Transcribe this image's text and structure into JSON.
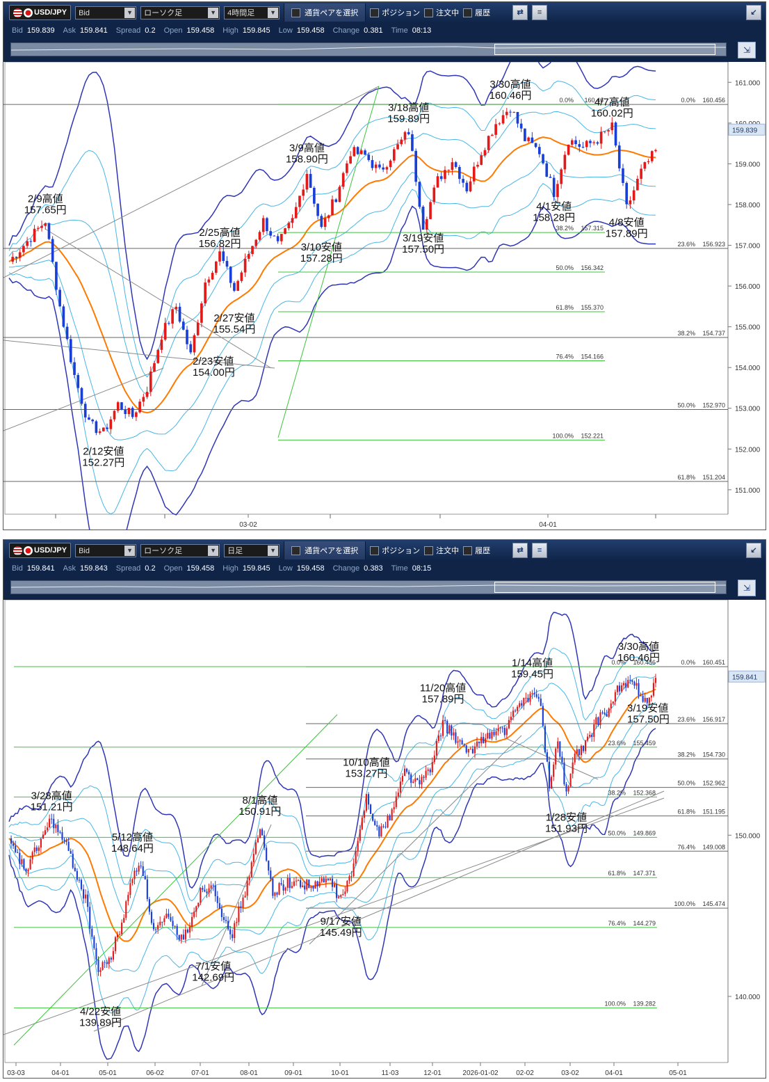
{
  "panels": [
    {
      "toolbar": {
        "symbol": "USD/JPY",
        "price_type": "Bid",
        "chart_kind": "ローソク足",
        "timeframe": "4時間足",
        "pair_select": "通貨ペアを選択",
        "positions": "ポジション",
        "orders": "注文中",
        "history": "履歴"
      },
      "quote": {
        "bid_label": "Bid",
        "bid": "159.839",
        "ask_label": "Ask",
        "ask": "159.841",
        "spread_label": "Spread",
        "spread": "0.2",
        "open_label": "Open",
        "open": "159.458",
        "high_label": "High",
        "high": "159.845",
        "low_label": "Low",
        "low": "159.458",
        "change_label": "Change",
        "change": "0.381",
        "time_label": "Time",
        "time": "08:13"
      },
      "current_price": "159.839"
    },
    {
      "toolbar": {
        "symbol": "USD/JPY",
        "price_type": "Bid",
        "chart_kind": "ローソク足",
        "timeframe": "日足",
        "pair_select": "通貨ペアを選択",
        "positions": "ポジション",
        "orders": "注文中",
        "history": "履歴"
      },
      "quote": {
        "bid_label": "Bid",
        "bid": "159.841",
        "ask_label": "Ask",
        "ask": "159.843",
        "spread_label": "Spread",
        "spread": "0.2",
        "open_label": "Open",
        "open": "159.458",
        "high_label": "High",
        "high": "159.845",
        "low_label": "Low",
        "low": "159.458",
        "change_label": "Change",
        "change": "0.383",
        "time_label": "Time",
        "time": "08:15"
      },
      "current_price": "159.841"
    }
  ],
  "colors": {
    "up": "#e21a1a",
    "down": "#1a3fd6",
    "ma_fast": "#ff7a00",
    "bb_inner": "#47b6e6",
    "bb_outer": "#2f36b5",
    "fib_green": "#3cc43c",
    "fib_gray": "#666666",
    "trend": "#8a8a8a"
  },
  "chart_data": [
    {
      "type": "candlestick",
      "timeframe": "4時間足",
      "x_ticks": [
        "03-02",
        "04-01"
      ],
      "y_ticks": [
        151.0,
        152.0,
        153.0,
        154.0,
        155.0,
        156.0,
        157.0,
        158.0,
        159.0,
        160.0,
        161.0
      ],
      "ylim": [
        150.4,
        161.5
      ],
      "last_price": 159.839,
      "anchors": [
        {
          "t": 0,
          "p": 156.6
        },
        {
          "t": 6,
          "p": 157.2
        },
        {
          "t": 10,
          "p": 157.6
        },
        {
          "t": 14,
          "p": 155.5
        },
        {
          "t": 18,
          "p": 153.8
        },
        {
          "t": 22,
          "p": 152.6
        },
        {
          "t": 26,
          "p": 152.4
        },
        {
          "t": 30,
          "p": 153.1
        },
        {
          "t": 34,
          "p": 152.8
        },
        {
          "t": 38,
          "p": 153.5
        },
        {
          "t": 42,
          "p": 154.8
        },
        {
          "t": 46,
          "p": 155.5
        },
        {
          "t": 50,
          "p": 154.3
        },
        {
          "t": 54,
          "p": 156.1
        },
        {
          "t": 58,
          "p": 156.8
        },
        {
          "t": 62,
          "p": 155.9
        },
        {
          "t": 66,
          "p": 156.8
        },
        {
          "t": 70,
          "p": 157.6
        },
        {
          "t": 74,
          "p": 157.0
        },
        {
          "t": 78,
          "p": 157.6
        },
        {
          "t": 82,
          "p": 158.8
        },
        {
          "t": 86,
          "p": 157.4
        },
        {
          "t": 90,
          "p": 158.2
        },
        {
          "t": 94,
          "p": 159.3
        },
        {
          "t": 98,
          "p": 159.2
        },
        {
          "t": 102,
          "p": 158.8
        },
        {
          "t": 106,
          "p": 159.3
        },
        {
          "t": 110,
          "p": 159.8
        },
        {
          "t": 114,
          "p": 157.5
        },
        {
          "t": 118,
          "p": 158.6
        },
        {
          "t": 122,
          "p": 159.1
        },
        {
          "t": 126,
          "p": 158.4
        },
        {
          "t": 130,
          "p": 159.3
        },
        {
          "t": 134,
          "p": 160.0
        },
        {
          "t": 138,
          "p": 160.4
        },
        {
          "t": 142,
          "p": 159.6
        },
        {
          "t": 146,
          "p": 159.3
        },
        {
          "t": 150,
          "p": 158.3
        },
        {
          "t": 154,
          "p": 159.6
        },
        {
          "t": 158,
          "p": 159.4
        },
        {
          "t": 162,
          "p": 159.6
        },
        {
          "t": 166,
          "p": 159.9
        },
        {
          "t": 170,
          "p": 157.9
        },
        {
          "t": 174,
          "p": 158.8
        },
        {
          "t": 178,
          "p": 159.3
        }
      ],
      "horizontal_lines": [
        {
          "label": "0.0%",
          "value": "160.456",
          "price": 160.456,
          "kind": "gray"
        },
        {
          "label": "23.6%",
          "value": "156.923",
          "price": 156.923,
          "kind": "gray"
        },
        {
          "label": "38.2%",
          "value": "154.737",
          "price": 154.737,
          "kind": "gray"
        },
        {
          "label": "50.0%",
          "value": "152.970",
          "price": 152.97,
          "kind": "gray"
        },
        {
          "label": "61.8%",
          "value": "151.204",
          "price": 151.204,
          "kind": "gray"
        }
      ],
      "fib_green": [
        {
          "label": "0.0%",
          "value": "160.46",
          "price": 160.46
        },
        {
          "label": "38.2%",
          "value": "157.315",
          "price": 157.315
        },
        {
          "label": "50.0%",
          "value": "156.342",
          "price": 156.342
        },
        {
          "label": "61.8%",
          "value": "155.370",
          "price": 155.37
        },
        {
          "label": "76.4%",
          "value": "154.166",
          "price": 154.166
        },
        {
          "label": "100.0%",
          "value": "152.221",
          "price": 152.221
        }
      ],
      "annotations": [
        {
          "line1": "2/9高値",
          "line2": "157.65円",
          "t": 10,
          "p": 157.65,
          "pos": "above"
        },
        {
          "line1": "2/12安値",
          "line2": "152.27円",
          "t": 26,
          "p": 152.27,
          "pos": "below"
        },
        {
          "line1": "2/23安値",
          "line2": "154.00円",
          "t": 49,
          "p": 154.0,
          "pos": "right"
        },
        {
          "line1": "2/25高値",
          "line2": "156.82円",
          "t": 58,
          "p": 156.82,
          "pos": "above"
        },
        {
          "line1": "2/27安値",
          "line2": "155.54円",
          "t": 62,
          "p": 155.54,
          "pos": "below"
        },
        {
          "line1": "3/9高値",
          "line2": "158.90円",
          "t": 82,
          "p": 158.9,
          "pos": "above"
        },
        {
          "line1": "3/10安値",
          "line2": "157.28円",
          "t": 86,
          "p": 157.28,
          "pos": "below"
        },
        {
          "line1": "3/18高値",
          "line2": "159.89円",
          "t": 110,
          "p": 159.89,
          "pos": "above"
        },
        {
          "line1": "3/19安値",
          "line2": "157.50円",
          "t": 114,
          "p": 157.5,
          "pos": "below"
        },
        {
          "line1": "3/30高値",
          "line2": "160.46円",
          "t": 138,
          "p": 160.46,
          "pos": "above"
        },
        {
          "line1": "4/1安値",
          "line2": "158.28円",
          "t": 150,
          "p": 158.28,
          "pos": "below"
        },
        {
          "line1": "4/7高値",
          "line2": "160.02円",
          "t": 166,
          "p": 160.02,
          "pos": "above"
        },
        {
          "line1": "4/8安値",
          "line2": "157.89円",
          "t": 170,
          "p": 157.89,
          "pos": "below"
        }
      ]
    },
    {
      "type": "candlestick",
      "timeframe": "日足",
      "x_ticks": [
        "03-03",
        "04-01",
        "05-01",
        "06-02",
        "07-01",
        "08-01",
        "09-01",
        "10-01",
        "11-03",
        "12-01",
        "2026-01-02",
        "02-02",
        "03-02",
        "04-01",
        "05-01"
      ],
      "y_ticks": [
        140.0,
        150.0
      ],
      "ylim": [
        135.9,
        164.6
      ],
      "last_price": 159.841,
      "anchors": [
        {
          "t": 0,
          "p": 149.5
        },
        {
          "t": 8,
          "p": 147.8
        },
        {
          "t": 16,
          "p": 150.0
        },
        {
          "t": 20,
          "p": 151.0
        },
        {
          "t": 28,
          "p": 149.0
        },
        {
          "t": 36,
          "p": 146.0
        },
        {
          "t": 42,
          "p": 141.5
        },
        {
          "t": 48,
          "p": 142.5
        },
        {
          "t": 54,
          "p": 145.0
        },
        {
          "t": 58,
          "p": 147.5
        },
        {
          "t": 62,
          "p": 148.4
        },
        {
          "t": 68,
          "p": 144.0
        },
        {
          "t": 74,
          "p": 144.8
        },
        {
          "t": 82,
          "p": 143.5
        },
        {
          "t": 90,
          "p": 146.5
        },
        {
          "t": 96,
          "p": 147.0
        },
        {
          "t": 104,
          "p": 143.5
        },
        {
          "t": 112,
          "p": 147.0
        },
        {
          "t": 118,
          "p": 150.4
        },
        {
          "t": 124,
          "p": 146.5
        },
        {
          "t": 130,
          "p": 147.0
        },
        {
          "t": 138,
          "p": 147.0
        },
        {
          "t": 144,
          "p": 146.8
        },
        {
          "t": 150,
          "p": 147.3
        },
        {
          "t": 156,
          "p": 146.0
        },
        {
          "t": 162,
          "p": 148.0
        },
        {
          "t": 168,
          "p": 152.5
        },
        {
          "t": 174,
          "p": 150.0
        },
        {
          "t": 180,
          "p": 151.5
        },
        {
          "t": 186,
          "p": 154.0
        },
        {
          "t": 192,
          "p": 153.2
        },
        {
          "t": 198,
          "p": 154.0
        },
        {
          "t": 204,
          "p": 157.0
        },
        {
          "t": 210,
          "p": 156.0
        },
        {
          "t": 216,
          "p": 155.0
        },
        {
          "t": 222,
          "p": 156.0
        },
        {
          "t": 228,
          "p": 156.3
        },
        {
          "t": 234,
          "p": 156.6
        },
        {
          "t": 240,
          "p": 158.2
        },
        {
          "t": 246,
          "p": 158.8
        },
        {
          "t": 250,
          "p": 158.0
        },
        {
          "t": 254,
          "p": 153.0
        },
        {
          "t": 258,
          "p": 156.0
        },
        {
          "t": 262,
          "p": 152.5
        },
        {
          "t": 266,
          "p": 155.0
        },
        {
          "t": 270,
          "p": 155.3
        },
        {
          "t": 276,
          "p": 157.0
        },
        {
          "t": 282,
          "p": 157.8
        },
        {
          "t": 286,
          "p": 159.0
        },
        {
          "t": 292,
          "p": 159.5
        },
        {
          "t": 296,
          "p": 159.0
        },
        {
          "t": 300,
          "p": 158.2
        },
        {
          "t": 304,
          "p": 159.8
        }
      ],
      "horizontal_lines": [
        {
          "label": "0.0%",
          "value": "160.451",
          "price": 160.451,
          "kind": "gray"
        },
        {
          "label": "23.6%",
          "value": "156.917",
          "price": 156.917,
          "kind": "gray"
        },
        {
          "label": "38.2%",
          "value": "154.730",
          "price": 154.73,
          "kind": "gray"
        },
        {
          "label": "50.0%",
          "value": "152.962",
          "price": 152.962,
          "kind": "gray"
        },
        {
          "label": "61.8%",
          "value": "151.195",
          "price": 151.195,
          "kind": "gray"
        },
        {
          "label": "76.4%",
          "value": "149.008",
          "price": 149.008,
          "kind": "gray"
        },
        {
          "label": "100.0%",
          "value": "145.474",
          "price": 145.474,
          "kind": "gray"
        }
      ],
      "fib_green": [
        {
          "label": "0.0%",
          "value": "160.456",
          "price": 160.456
        },
        {
          "label": "23.6%",
          "value": "155.459",
          "price": 155.459
        },
        {
          "label": "38.2%",
          "value": "152.368",
          "price": 152.368
        },
        {
          "label": "50.0%",
          "value": "149.869",
          "price": 149.869
        },
        {
          "label": "61.8%",
          "value": "147.371",
          "price": 147.371
        },
        {
          "label": "76.4%",
          "value": "144.279",
          "price": 144.279
        },
        {
          "label": "100.0%",
          "value": "139.282",
          "price": 139.282
        }
      ],
      "annotations": [
        {
          "line1": "3/28高値",
          "line2": "151.21円",
          "t": 20,
          "p": 151.21,
          "pos": "above"
        },
        {
          "line1": "4/22安値",
          "line2": "139.89円",
          "t": 43,
          "p": 139.89,
          "pos": "below"
        },
        {
          "line1": "5/12高値",
          "line2": "148.64円",
          "t": 58,
          "p": 148.64,
          "pos": "above"
        },
        {
          "line1": "7/1安値",
          "line2": "142.69円",
          "t": 96,
          "p": 142.69,
          "pos": "below"
        },
        {
          "line1": "8/1高値",
          "line2": "150.91円",
          "t": 118,
          "p": 150.91,
          "pos": "above"
        },
        {
          "line1": "9/17安値",
          "line2": "145.49円",
          "t": 156,
          "p": 145.49,
          "pos": "below"
        },
        {
          "line1": "10/10高値",
          "line2": "153.27円",
          "t": 168,
          "p": 153.27,
          "pos": "above"
        },
        {
          "line1": "11/20高値",
          "line2": "157.89円",
          "t": 204,
          "p": 157.89,
          "pos": "above"
        },
        {
          "line1": "1/14高値",
          "line2": "159.45円",
          "t": 246,
          "p": 159.45,
          "pos": "above"
        },
        {
          "line1": "1/28安値",
          "line2": "151.93円",
          "t": 262,
          "p": 151.93,
          "pos": "below"
        },
        {
          "line1": "3/30高値",
          "line2": "160.46円",
          "t": 296,
          "p": 160.46,
          "pos": "above"
        },
        {
          "line1": "3/19安値",
          "line2": "157.50円",
          "t": 288,
          "p": 157.5,
          "pos": "right"
        }
      ]
    }
  ]
}
